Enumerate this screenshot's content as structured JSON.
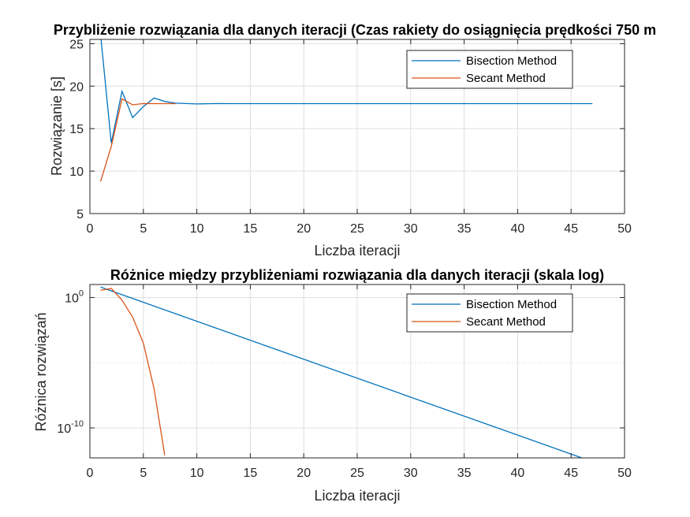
{
  "chart_data": [
    {
      "type": "line",
      "title": "Przybliżenie rozwiązania dla danych iteracji (Czas rakiety do osiągnięcia prędkości 750 m",
      "xlabel": "Liczba iteracji",
      "ylabel": "Rozwiązanie [s]",
      "xlim": [
        0,
        50
      ],
      "ylim": [
        5,
        25.5
      ],
      "yscale": "linear",
      "xticks": [
        "0",
        "5",
        "10",
        "15",
        "20",
        "25",
        "30",
        "35",
        "40",
        "45",
        "50"
      ],
      "yticks": [
        "5",
        "10",
        "15",
        "20",
        "25"
      ],
      "grid": true,
      "legend_position": "top-right",
      "series": [
        {
          "name": "Bisection Method",
          "color": "#0072BD",
          "x": [
            1,
            2,
            3,
            4,
            5,
            6,
            7,
            8,
            9,
            10,
            11,
            12,
            13,
            14,
            15,
            16,
            17,
            18,
            19,
            20,
            21,
            22,
            23,
            24,
            25,
            26,
            27,
            28,
            29,
            30,
            31,
            32,
            33,
            34,
            35,
            36,
            37,
            38,
            39,
            40,
            41,
            42,
            43,
            44,
            45,
            46,
            47
          ],
          "values": [
            26.0,
            13.3,
            19.4,
            16.3,
            17.6,
            18.6,
            18.2,
            18.0,
            17.95,
            17.9,
            17.93,
            17.95,
            17.94,
            17.94,
            17.94,
            17.94,
            17.94,
            17.94,
            17.94,
            17.94,
            17.94,
            17.94,
            17.94,
            17.94,
            17.94,
            17.94,
            17.94,
            17.94,
            17.94,
            17.94,
            17.94,
            17.94,
            17.94,
            17.94,
            17.94,
            17.94,
            17.94,
            17.94,
            17.94,
            17.94,
            17.94,
            17.94,
            17.94,
            17.94,
            17.94,
            17.94,
            17.94
          ]
        },
        {
          "name": "Secant Method",
          "color": "#D95319",
          "x": [
            1,
            2,
            3,
            4,
            5,
            6,
            7,
            8
          ],
          "values": [
            8.8,
            12.9,
            18.5,
            17.8,
            17.95,
            17.94,
            17.94,
            17.94
          ]
        }
      ]
    },
    {
      "type": "line",
      "title": "Różnice między przybliżeniami rozwiązania dla danych iteracji (skala log)",
      "xlabel": "Liczba iteracji",
      "ylabel": "Różnica rozwiązań",
      "xlim": [
        0,
        50
      ],
      "ylim_log10": [
        -12.3,
        1.0
      ],
      "yscale": "log",
      "xticks": [
        "0",
        "5",
        "10",
        "15",
        "20",
        "25",
        "30",
        "35",
        "40",
        "45",
        "50"
      ],
      "yticks": [
        {
          "base": "10",
          "exp": "0",
          "log10": 0
        },
        {
          "base": "10",
          "exp": "-10",
          "log10": -10
        }
      ],
      "minor_grid_log10": [
        -5
      ],
      "grid": true,
      "legend_position": "top-right",
      "series": [
        {
          "name": "Bisection Method",
          "color": "#0072BD",
          "x": [
            1,
            46
          ],
          "values_log10": [
            0.8,
            -12.3
          ]
        },
        {
          "name": "Secant Method",
          "color": "#D95319",
          "x": [
            1,
            2,
            3,
            4,
            5,
            6,
            7
          ],
          "values_log10": [
            0.55,
            0.7,
            -0.2,
            -1.5,
            -3.5,
            -7.0,
            -12.1
          ]
        }
      ]
    }
  ]
}
